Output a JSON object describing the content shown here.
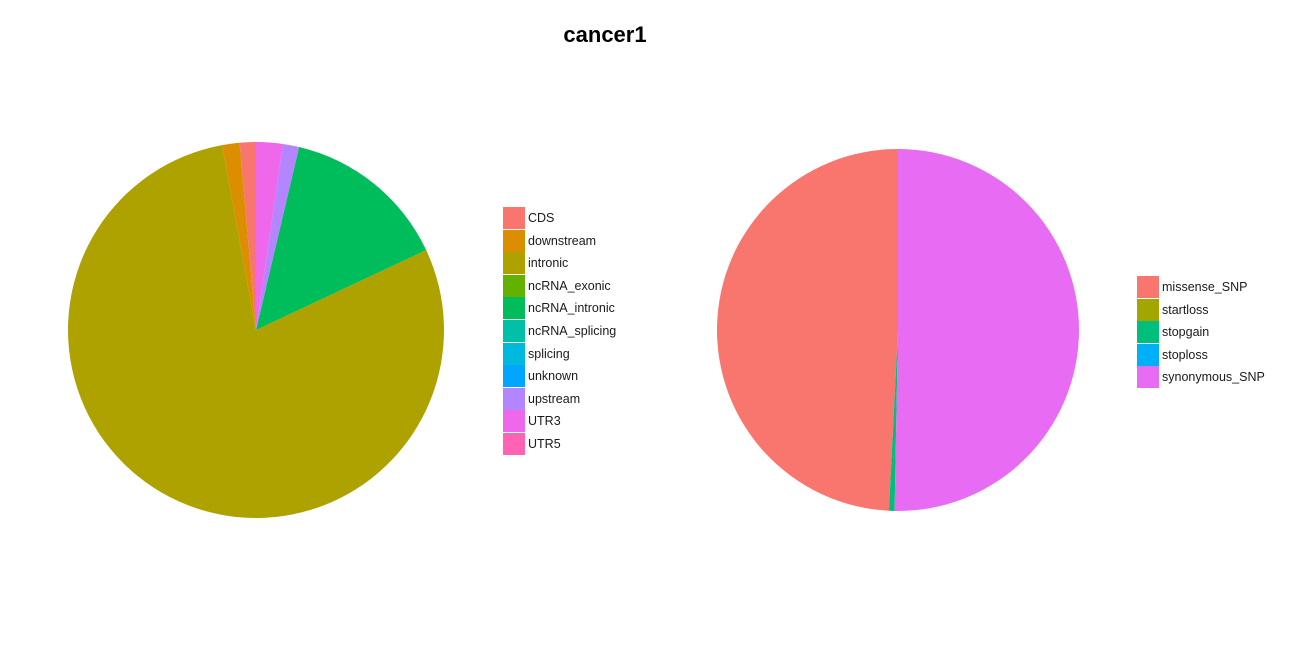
{
  "title": "cancer1",
  "chart_data": [
    {
      "type": "pie",
      "categories": [
        "CDS",
        "downstream",
        "intronic",
        "ncRNA_exonic",
        "ncRNA_intronic",
        "ncRNA_splicing",
        "splicing",
        "unknown",
        "upstream",
        "UTR3",
        "UTR5"
      ],
      "values": [
        1.4,
        1.5,
        79.5,
        0.0,
        14.4,
        0.0,
        0.0,
        0.0,
        1.4,
        2.3,
        0.0
      ],
      "colors": [
        "#F8766D",
        "#DB8E00",
        "#AEA200",
        "#64B200",
        "#00BD5C",
        "#00C1A7",
        "#00BADE",
        "#00A6FF",
        "#B385FF",
        "#EF67EB",
        "#FF63B6"
      ],
      "title": "",
      "xlabel": "",
      "ylabel": "",
      "legend_position": "right",
      "start": "12 o'clock",
      "direction": "counterclockwise"
    },
    {
      "type": "pie",
      "categories": [
        "missense_SNP",
        "startloss",
        "stopgain",
        "stoploss",
        "synonymous_SNP"
      ],
      "values": [
        49.2,
        0.0,
        0.5,
        0.0,
        50.3
      ],
      "colors": [
        "#F8766D",
        "#A3A500",
        "#00BF7D",
        "#00B0F6",
        "#E76BF3"
      ],
      "title": "",
      "xlabel": "",
      "ylabel": "",
      "legend_position": "right",
      "start": "12 o'clock",
      "direction": "counterclockwise"
    }
  ]
}
